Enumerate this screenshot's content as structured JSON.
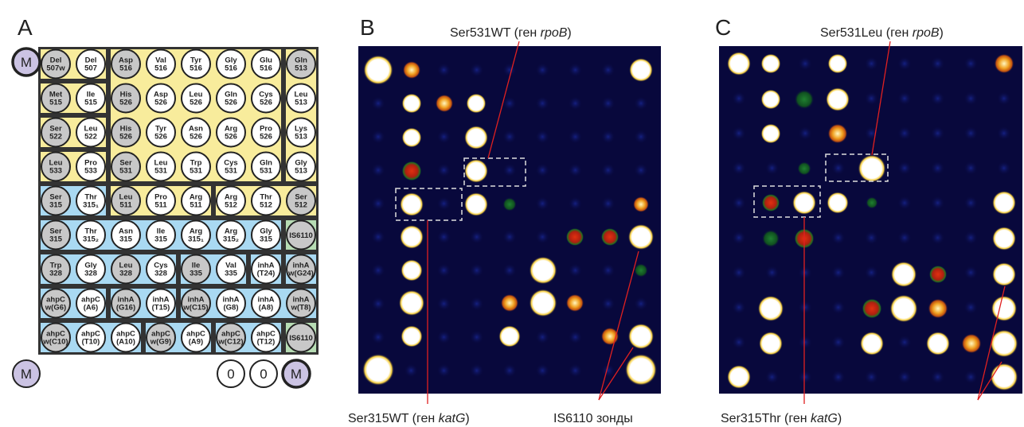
{
  "panel_a": {
    "letter": "A",
    "cells": [
      [
        [
          "Del",
          "507w"
        ],
        [
          "Del",
          "507"
        ],
        [
          "Asp",
          "516"
        ],
        [
          "Val",
          "516"
        ],
        [
          "Tyr",
          "516"
        ],
        [
          "Gly",
          "516"
        ],
        [
          "Glu",
          "516"
        ],
        [
          "Gln",
          "513"
        ]
      ],
      [
        [
          "Met",
          "515"
        ],
        [
          "Ile",
          "515"
        ],
        [
          "His",
          "526"
        ],
        [
          "Asp",
          "526"
        ],
        [
          "Leu",
          "526"
        ],
        [
          "Gln",
          "526"
        ],
        [
          "Cys",
          "526"
        ],
        [
          "Leu",
          "513"
        ]
      ],
      [
        [
          "Ser",
          "522"
        ],
        [
          "Leu",
          "522"
        ],
        [
          "His",
          "526"
        ],
        [
          "Tyr",
          "526"
        ],
        [
          "Asn",
          "526"
        ],
        [
          "Arg",
          "526"
        ],
        [
          "Pro",
          "526"
        ],
        [
          "Lys",
          "513"
        ]
      ],
      [
        [
          "Leu",
          "533"
        ],
        [
          "Pro",
          "533"
        ],
        [
          "Ser",
          "531"
        ],
        [
          "Leu",
          "531"
        ],
        [
          "Trp",
          "531"
        ],
        [
          "Cys",
          "531"
        ],
        [
          "Gln",
          "531"
        ],
        [
          "Gly",
          "513"
        ]
      ],
      [
        [
          "Ser",
          "315"
        ],
        [
          "Thr",
          "315₁"
        ],
        [
          "Leu",
          "511"
        ],
        [
          "Pro",
          "511"
        ],
        [
          "Arg",
          "511"
        ],
        [
          "Arg",
          "512"
        ],
        [
          "Thr",
          "512"
        ],
        [
          "Ser",
          "512"
        ]
      ],
      [
        [
          "Ser",
          "315"
        ],
        [
          "Thr",
          "315₂"
        ],
        [
          "Asn",
          "315"
        ],
        [
          "Ile",
          "315"
        ],
        [
          "Arg",
          "315₁"
        ],
        [
          "Arg",
          "315₂"
        ],
        [
          "Gly",
          "315"
        ],
        [
          "IS6110"
        ]
      ],
      [
        [
          "Trp",
          "328"
        ],
        [
          "Gly",
          "328"
        ],
        [
          "Leu",
          "328"
        ],
        [
          "Cys",
          "328"
        ],
        [
          "Ile",
          "335"
        ],
        [
          "Val",
          "335"
        ],
        [
          "inhA",
          "(T24)"
        ],
        [
          "inhA",
          "w(G24)"
        ]
      ],
      [
        [
          "ahpC",
          "w(G6)"
        ],
        [
          "ahpC",
          "(A6)"
        ],
        [
          "inhA",
          "(G16)"
        ],
        [
          "inhA",
          "(T15)"
        ],
        [
          "inhA",
          "w(C15)"
        ],
        [
          "inhA",
          "(G8)"
        ],
        [
          "inhA",
          "(A8)"
        ],
        [
          "inhA",
          "w(T8)"
        ]
      ],
      [
        [
          "ahpC",
          "w(C10)"
        ],
        [
          "ahpC",
          "(T10)"
        ],
        [
          "ahpC",
          "(A10)"
        ],
        [
          "ahpC",
          "w(G9)"
        ],
        [
          "ahpC",
          "(A9)"
        ],
        [
          "ahpC",
          "w(C12)"
        ],
        [
          "ahpC",
          "(T12)"
        ],
        [
          "IS6110"
        ]
      ]
    ],
    "markers": [
      "M",
      "M",
      "0",
      "0",
      "M"
    ]
  },
  "panel_b": {
    "letter": "B",
    "top_label": {
      "pre": "Ser531WT (ген ",
      "gene": "rpoB",
      "post": ")"
    },
    "left_label": {
      "pre": "Ser315WT (ген ",
      "gene": "katG",
      "post": ")"
    },
    "right_label": "IS6110 зонды"
  },
  "panel_c": {
    "letter": "C",
    "top_label": {
      "pre": "Ser531Leu (ген ",
      "gene": "rpoB",
      "post": ")"
    },
    "left_label": {
      "pre": "Ser315Thr (ген ",
      "gene": "katG",
      "post": ")"
    }
  }
}
